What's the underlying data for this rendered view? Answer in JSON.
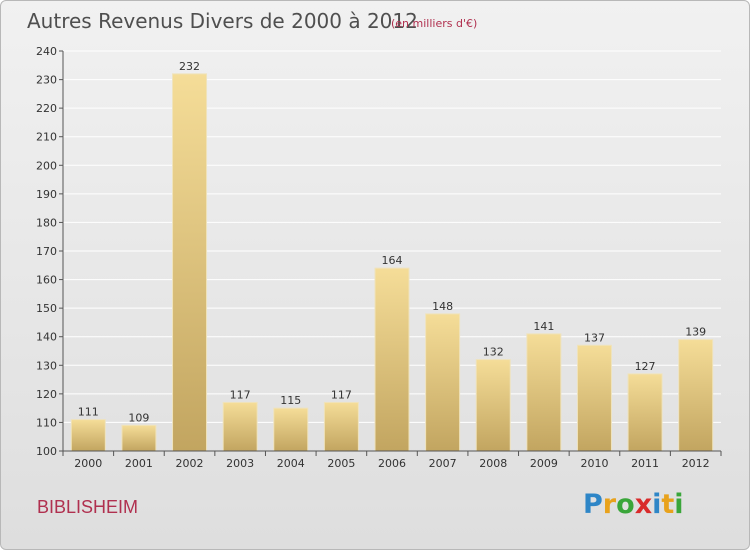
{
  "header": {
    "title": "Autres Revenus Divers de 2000 à 2012",
    "subtitle": "(en milliers d'€)"
  },
  "footer": {
    "town": "BIBLISHEIM",
    "logo": [
      "P",
      "r",
      "o",
      "x",
      "i",
      "t",
      "i"
    ],
    "logo_colors": [
      "#2e86c7",
      "#e8a21c",
      "#3aa63a",
      "#d92b2b",
      "#2e86c7",
      "#e8a21c",
      "#3aa63a"
    ]
  },
  "chart_data": {
    "type": "bar",
    "categories": [
      "2000",
      "2001",
      "2002",
      "2003",
      "2004",
      "2005",
      "2006",
      "2007",
      "2008",
      "2009",
      "2010",
      "2011",
      "2012"
    ],
    "values": [
      111,
      109,
      232,
      117,
      115,
      117,
      164,
      148,
      132,
      141,
      137,
      127,
      139
    ],
    "ylim": [
      100,
      240
    ],
    "yticks": [
      100,
      110,
      120,
      130,
      140,
      150,
      160,
      170,
      180,
      190,
      200,
      210,
      220,
      230,
      240
    ],
    "grid": true,
    "colors": {
      "bar_light": "#f5dd98",
      "bar_dark": "#c2a560",
      "grid": "#ffffff",
      "axis": "#555555"
    }
  }
}
